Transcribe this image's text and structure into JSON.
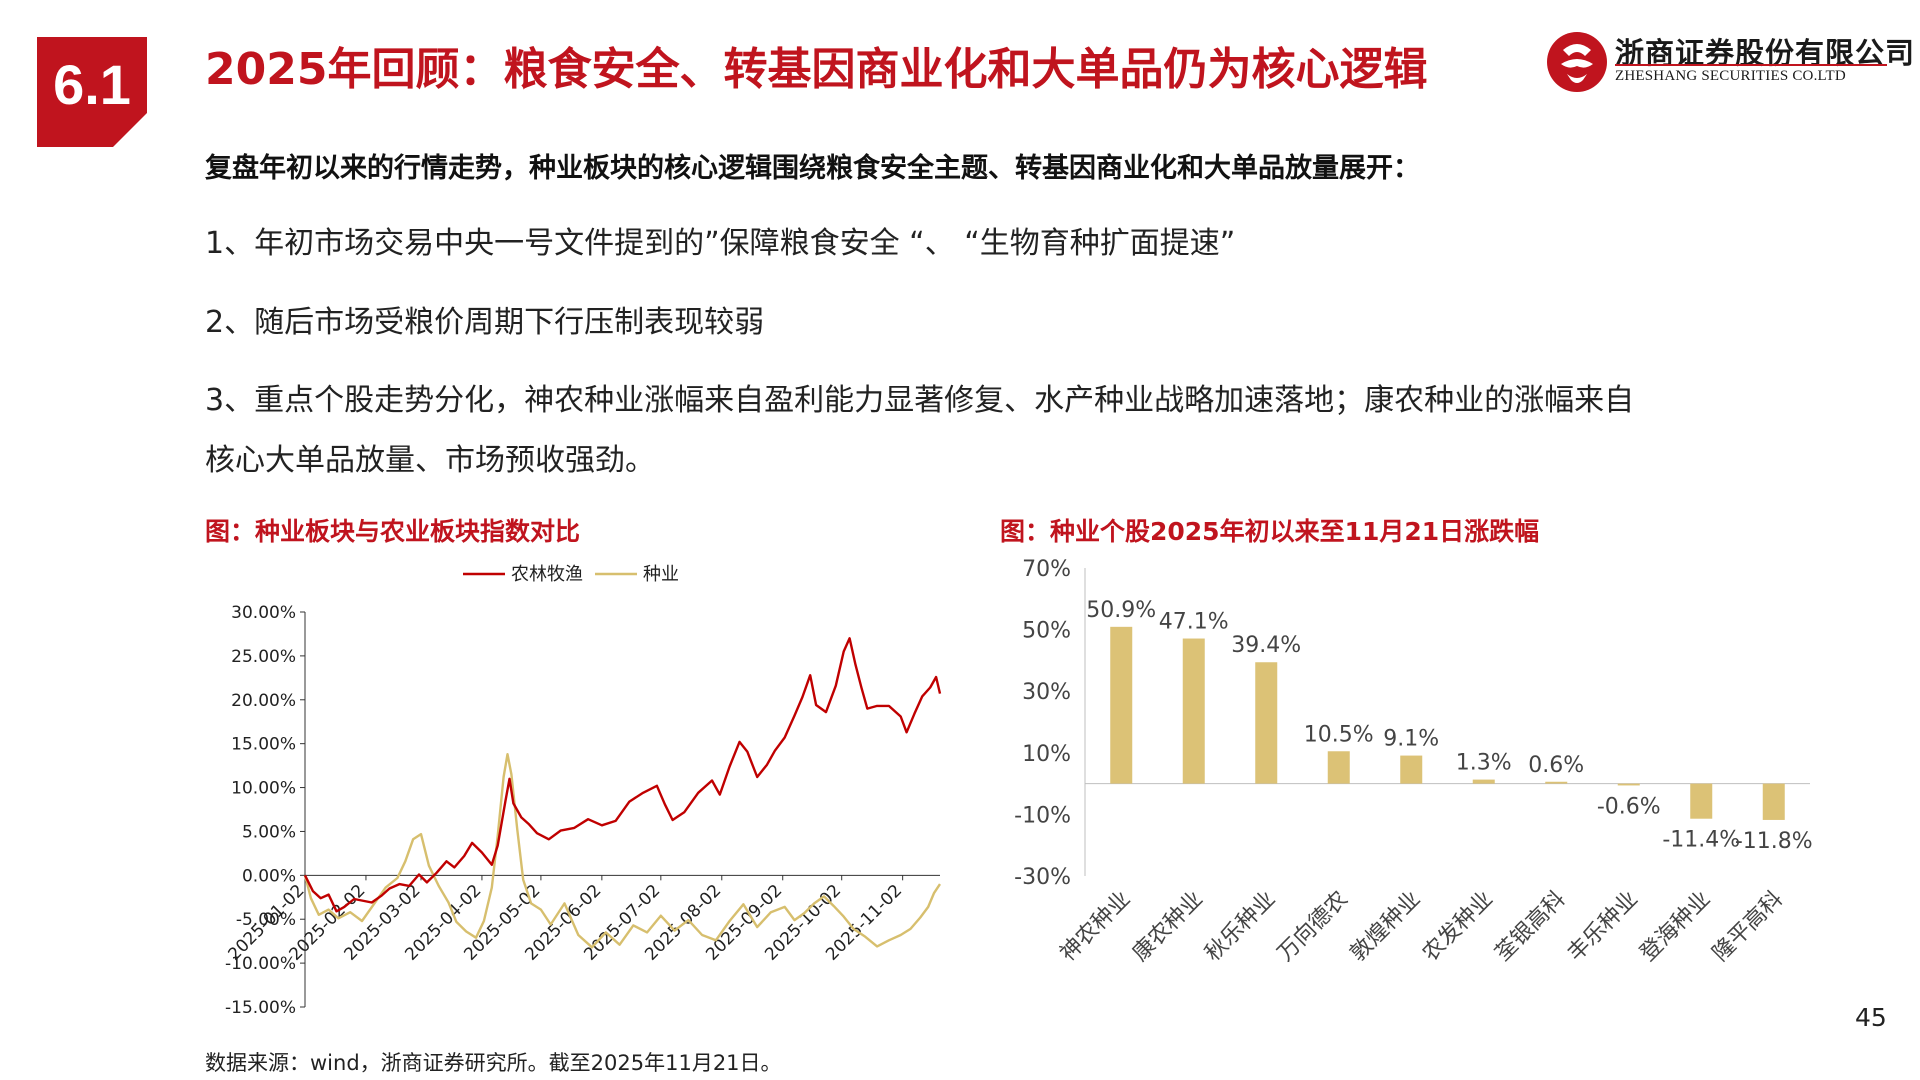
{
  "section_number": "6.1",
  "title": "2025年回顾：粮食安全、转基因商业化和大单品仍为核心逻辑",
  "logo": {
    "name_cn": "浙商证券股份有限公司",
    "name_en": "ZHESHANG SECURITIES CO.LTD"
  },
  "intro": "复盘年初以来的行情走势，种业板块的核心逻辑围绕粮食安全主题、转基因商业化和大单品放量展开：",
  "points": [
    "1、年初市场交易中央一号文件提到的”保障粮食安全 “、 “生物育种扩面提速”",
    "2、随后市场受粮价周期下行压制表现较弱",
    "3、重点个股走势分化，神农种业涨幅来自盈利能力显著修复、水产种业战略加速落地；康农种业的涨幅来自",
    "核心大单品放量、市场预收强劲。"
  ],
  "figure_left_title": "图：种业板块与农业板块指数对比",
  "figure_right_title": "图：种业个股2025年初以来至11月21日涨跌幅",
  "source": "数据来源：wind，浙商证券研究所。截至2025年11月21日。",
  "page_number": "45",
  "colors": {
    "brand_red": "#c0141e",
    "series_red": "#c00000",
    "series_gold": "#d7bf6e",
    "bar_gold": "#dcc276"
  },
  "chart_data": [
    {
      "type": "line",
      "x_tick_labels": [
        "2025-01-02",
        "2025-02-02",
        "2025-03-02",
        "2025-04-02",
        "2025-05-02",
        "2025-06-02",
        "2025-07-02",
        "2025-08-02",
        "2025-09-02",
        "2025-10-02",
        "2025-11-02"
      ],
      "y_tick_labels": [
        "30.00%",
        "25.00%",
        "20.00%",
        "15.00%",
        "10.00%",
        "5.00%",
        "0.00%",
        "-5.00%",
        "-10.00%",
        "-15.00%"
      ],
      "ylim": [
        -15,
        30
      ],
      "grid": false,
      "legend_position": "top-center",
      "series": [
        {
          "name": "农林牧渔",
          "color": "#c00000",
          "points": [
            [
              "2025-01-02",
              0
            ],
            [
              "2025-01-06",
              -1.8
            ],
            [
              "2025-01-10",
              -2.6
            ],
            [
              "2025-01-14",
              -2.2
            ],
            [
              "2025-01-18",
              -4.1
            ],
            [
              "2025-01-22",
              -3.6
            ],
            [
              "2025-01-27",
              -2.7
            ],
            [
              "2025-02-05",
              -3.1
            ],
            [
              "2025-02-10",
              -2.3
            ],
            [
              "2025-02-14",
              -1.5
            ],
            [
              "2025-02-19",
              -1.0
            ],
            [
              "2025-02-24",
              -1.2
            ],
            [
              "2025-03-01",
              0.1
            ],
            [
              "2025-03-05",
              -0.8
            ],
            [
              "2025-03-10",
              0.3
            ],
            [
              "2025-03-15",
              1.6
            ],
            [
              "2025-03-19",
              0.9
            ],
            [
              "2025-03-24",
              2.2
            ],
            [
              "2025-03-28",
              3.7
            ],
            [
              "2025-04-02",
              2.6
            ],
            [
              "2025-04-07",
              1.2
            ],
            [
              "2025-04-10",
              3.4
            ],
            [
              "2025-04-14",
              8.5
            ],
            [
              "2025-04-16",
              11.0
            ],
            [
              "2025-04-18",
              8.2
            ],
            [
              "2025-04-22",
              6.6
            ],
            [
              "2025-04-26",
              5.8
            ],
            [
              "2025-04-30",
              4.8
            ],
            [
              "2025-05-06",
              4.1
            ],
            [
              "2025-05-12",
              5.1
            ],
            [
              "2025-05-19",
              5.4
            ],
            [
              "2025-05-26",
              6.4
            ],
            [
              "2025-06-02",
              5.7
            ],
            [
              "2025-06-09",
              6.2
            ],
            [
              "2025-06-16",
              8.4
            ],
            [
              "2025-06-23",
              9.4
            ],
            [
              "2025-06-30",
              10.2
            ],
            [
              "2025-07-04",
              8.1
            ],
            [
              "2025-07-08",
              6.3
            ],
            [
              "2025-07-14",
              7.2
            ],
            [
              "2025-07-21",
              9.4
            ],
            [
              "2025-07-28",
              10.8
            ],
            [
              "2025-08-01",
              9.2
            ],
            [
              "2025-08-06",
              12.4
            ],
            [
              "2025-08-11",
              15.2
            ],
            [
              "2025-08-15",
              14.1
            ],
            [
              "2025-08-20",
              11.2
            ],
            [
              "2025-08-25",
              12.6
            ],
            [
              "2025-08-29",
              14.2
            ],
            [
              "2025-09-03",
              15.7
            ],
            [
              "2025-09-08",
              18.2
            ],
            [
              "2025-09-12",
              20.3
            ],
            [
              "2025-09-16",
              22.8
            ],
            [
              "2025-09-19",
              19.4
            ],
            [
              "2025-09-24",
              18.6
            ],
            [
              "2025-09-29",
              21.6
            ],
            [
              "2025-10-03",
              25.5
            ],
            [
              "2025-10-06",
              27.0
            ],
            [
              "2025-10-09",
              24.0
            ],
            [
              "2025-10-12",
              21.4
            ],
            [
              "2025-10-15",
              19.0
            ],
            [
              "2025-10-20",
              19.3
            ],
            [
              "2025-10-26",
              19.3
            ],
            [
              "2025-11-01",
              18.1
            ],
            [
              "2025-11-04",
              16.3
            ],
            [
              "2025-11-08",
              18.4
            ],
            [
              "2025-11-12",
              20.4
            ],
            [
              "2025-11-16",
              21.4
            ],
            [
              "2025-11-19",
              22.6
            ],
            [
              "2025-11-21",
              20.7
            ]
          ]
        },
        {
          "name": "种业",
          "color": "#d7bf6e",
          "points": [
            [
              "2025-01-02",
              0
            ],
            [
              "2025-01-05",
              -2.6
            ],
            [
              "2025-01-09",
              -4.5
            ],
            [
              "2025-01-14",
              -3.9
            ],
            [
              "2025-01-19",
              -4.9
            ],
            [
              "2025-01-25",
              -4.2
            ],
            [
              "2025-01-31",
              -5.2
            ],
            [
              "2025-02-06",
              -3.3
            ],
            [
              "2025-02-12",
              -1.4
            ],
            [
              "2025-02-18",
              -0.3
            ],
            [
              "2025-02-22",
              1.6
            ],
            [
              "2025-02-26",
              4.1
            ],
            [
              "2025-03-02",
              4.7
            ],
            [
              "2025-03-06",
              1.1
            ],
            [
              "2025-03-11",
              -1.2
            ],
            [
              "2025-03-16",
              -3.1
            ],
            [
              "2025-03-20",
              -5.3
            ],
            [
              "2025-03-25",
              -6.4
            ],
            [
              "2025-03-30",
              -7.1
            ],
            [
              "2025-04-03",
              -5.2
            ],
            [
              "2025-04-07",
              -1.4
            ],
            [
              "2025-04-10",
              4.5
            ],
            [
              "2025-04-13",
              11.2
            ],
            [
              "2025-04-15",
              13.8
            ],
            [
              "2025-04-17",
              11.5
            ],
            [
              "2025-04-20",
              5.2
            ],
            [
              "2025-04-23",
              -0.5
            ],
            [
              "2025-04-27",
              -3.2
            ],
            [
              "2025-05-02",
              -3.9
            ],
            [
              "2025-05-07",
              -5.6
            ],
            [
              "2025-05-14",
              -3.2
            ],
            [
              "2025-05-21",
              -6.8
            ],
            [
              "2025-05-28",
              -8.2
            ],
            [
              "2025-06-04",
              -6.5
            ],
            [
              "2025-06-11",
              -7.9
            ],
            [
              "2025-06-18",
              -5.7
            ],
            [
              "2025-06-25",
              -6.5
            ],
            [
              "2025-07-02",
              -4.6
            ],
            [
              "2025-07-09",
              -6.3
            ],
            [
              "2025-07-16",
              -5.1
            ],
            [
              "2025-07-23",
              -6.8
            ],
            [
              "2025-07-30",
              -7.4
            ],
            [
              "2025-08-06",
              -5.2
            ],
            [
              "2025-08-13",
              -3.3
            ],
            [
              "2025-08-20",
              -5.9
            ],
            [
              "2025-08-27",
              -4.2
            ],
            [
              "2025-09-03",
              -3.6
            ],
            [
              "2025-09-08",
              -5.1
            ],
            [
              "2025-09-13",
              -4.3
            ],
            [
              "2025-09-18",
              -3.2
            ],
            [
              "2025-09-23",
              -2.4
            ],
            [
              "2025-09-28",
              -3.5
            ],
            [
              "2025-10-03",
              -4.7
            ],
            [
              "2025-10-08",
              -6.1
            ],
            [
              "2025-10-14",
              -7.0
            ],
            [
              "2025-10-20",
              -8.1
            ],
            [
              "2025-10-26",
              -7.4
            ],
            [
              "2025-11-01",
              -6.8
            ],
            [
              "2025-11-06",
              -6.1
            ],
            [
              "2025-11-11",
              -4.8
            ],
            [
              "2025-11-15",
              -3.6
            ],
            [
              "2025-11-18",
              -2.0
            ],
            [
              "2025-11-21",
              -1.0
            ]
          ]
        }
      ]
    },
    {
      "type": "bar",
      "categories": [
        "神农种业",
        "康农种业",
        "秋乐种业",
        "万向德农",
        "敦煌种业",
        "农发种业",
        "荃银高科",
        "丰乐种业",
        "登海种业",
        "隆平高科"
      ],
      "values": [
        50.9,
        47.1,
        39.4,
        10.5,
        9.1,
        1.3,
        0.6,
        -0.6,
        -11.4,
        -11.8
      ],
      "data_labels": [
        "50.9%",
        "47.1%",
        "39.4%",
        "10.5%",
        "9.1%",
        "1.3%",
        "0.6%",
        "-0.6%",
        "-11.4%",
        "-11.8%"
      ],
      "y_tick_labels": [
        "70%",
        "50%",
        "30%",
        "10%",
        "-10%",
        "-30%"
      ],
      "ylim": [
        -30,
        70
      ],
      "color": "#dcc276",
      "grid": false
    }
  ]
}
